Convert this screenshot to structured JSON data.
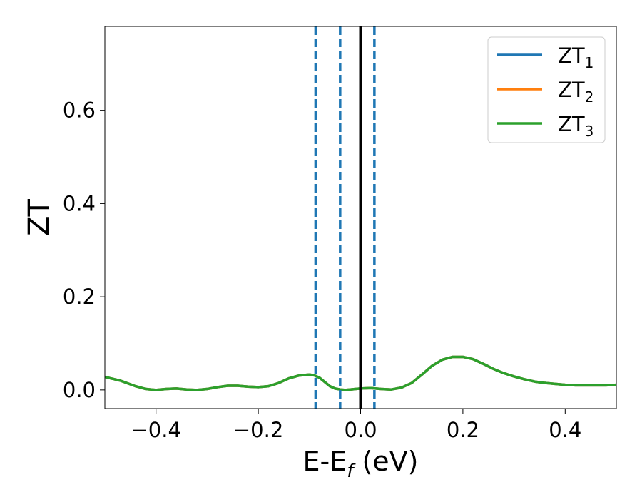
{
  "chart_data": {
    "type": "line",
    "title": "",
    "xlabel": {
      "base": "E-E",
      "subscript": "f",
      "suffix": " (eV)"
    },
    "ylabel": "ZT",
    "xlim": [
      -0.5,
      0.5
    ],
    "ylim": [
      -0.04,
      0.78
    ],
    "xticks": [
      -0.4,
      -0.2,
      0.0,
      0.2,
      0.4
    ],
    "xtick_labels": [
      "−0.4",
      "−0.2",
      "0.0",
      "0.2",
      "0.4"
    ],
    "yticks": [
      0.0,
      0.2,
      0.4,
      0.6
    ],
    "ytick_labels": [
      "0.0",
      "0.2",
      "0.4",
      "0.6"
    ],
    "grid": false,
    "legend_position": "top-right",
    "series": [
      {
        "name": "ZT",
        "subscript": "1",
        "color": "#1f77b4",
        "x": [
          -0.5,
          -0.47,
          -0.44,
          -0.42,
          -0.4,
          -0.38,
          -0.36,
          -0.34,
          -0.32,
          -0.3,
          -0.28,
          -0.26,
          -0.24,
          -0.22,
          -0.2,
          -0.18,
          -0.16,
          -0.14,
          -0.12,
          -0.1,
          -0.09,
          -0.08,
          -0.07,
          -0.06,
          -0.05,
          -0.04,
          -0.03,
          -0.02,
          -0.01,
          0.0,
          0.02,
          0.04,
          0.06,
          0.08,
          0.1,
          0.12,
          0.14,
          0.16,
          0.18,
          0.2,
          0.22,
          0.24,
          0.26,
          0.28,
          0.3,
          0.32,
          0.34,
          0.36,
          0.38,
          0.4,
          0.42,
          0.44,
          0.46,
          0.48,
          0.5
        ],
        "y": [
          0.028,
          0.02,
          0.008,
          0.002,
          0.0,
          0.002,
          0.003,
          0.001,
          0.0,
          0.002,
          0.006,
          0.009,
          0.009,
          0.007,
          0.006,
          0.008,
          0.015,
          0.025,
          0.031,
          0.033,
          0.031,
          0.026,
          0.017,
          0.008,
          0.003,
          0.001,
          0.0,
          0.001,
          0.002,
          0.003,
          0.004,
          0.002,
          0.001,
          0.005,
          0.015,
          0.033,
          0.052,
          0.065,
          0.071,
          0.071,
          0.066,
          0.056,
          0.045,
          0.036,
          0.029,
          0.023,
          0.018,
          0.015,
          0.013,
          0.011,
          0.01,
          0.01,
          0.01,
          0.01,
          0.011
        ]
      },
      {
        "name": "ZT",
        "subscript": "2",
        "color": "#ff7f0e",
        "x": [
          -0.5,
          -0.47,
          -0.44,
          -0.42,
          -0.4,
          -0.38,
          -0.36,
          -0.34,
          -0.32,
          -0.3,
          -0.28,
          -0.26,
          -0.24,
          -0.22,
          -0.2,
          -0.18,
          -0.16,
          -0.14,
          -0.12,
          -0.1,
          -0.09,
          -0.08,
          -0.07,
          -0.06,
          -0.05,
          -0.04,
          -0.03,
          -0.02,
          -0.01,
          0.0,
          0.02,
          0.04,
          0.06,
          0.08,
          0.1,
          0.12,
          0.14,
          0.16,
          0.18,
          0.2,
          0.22,
          0.24,
          0.26,
          0.28,
          0.3,
          0.32,
          0.34,
          0.36,
          0.38,
          0.4,
          0.42,
          0.44,
          0.46,
          0.48,
          0.5
        ],
        "y": [
          0.028,
          0.02,
          0.008,
          0.002,
          0.0,
          0.002,
          0.003,
          0.001,
          0.0,
          0.002,
          0.006,
          0.009,
          0.009,
          0.007,
          0.006,
          0.008,
          0.015,
          0.025,
          0.031,
          0.033,
          0.031,
          0.026,
          0.017,
          0.008,
          0.003,
          0.001,
          0.0,
          0.001,
          0.002,
          0.003,
          0.004,
          0.002,
          0.001,
          0.005,
          0.015,
          0.033,
          0.052,
          0.065,
          0.071,
          0.071,
          0.066,
          0.056,
          0.045,
          0.036,
          0.029,
          0.023,
          0.018,
          0.015,
          0.013,
          0.011,
          0.01,
          0.01,
          0.01,
          0.01,
          0.011
        ]
      },
      {
        "name": "ZT",
        "subscript": "3",
        "color": "#2ca02c",
        "x": [
          -0.5,
          -0.47,
          -0.44,
          -0.42,
          -0.4,
          -0.38,
          -0.36,
          -0.34,
          -0.32,
          -0.3,
          -0.28,
          -0.26,
          -0.24,
          -0.22,
          -0.2,
          -0.18,
          -0.16,
          -0.14,
          -0.12,
          -0.1,
          -0.09,
          -0.08,
          -0.07,
          -0.06,
          -0.05,
          -0.04,
          -0.03,
          -0.02,
          -0.01,
          0.0,
          0.02,
          0.04,
          0.06,
          0.08,
          0.1,
          0.12,
          0.14,
          0.16,
          0.18,
          0.2,
          0.22,
          0.24,
          0.26,
          0.28,
          0.3,
          0.32,
          0.34,
          0.36,
          0.38,
          0.4,
          0.42,
          0.44,
          0.46,
          0.48,
          0.5
        ],
        "y": [
          0.028,
          0.02,
          0.008,
          0.002,
          0.0,
          0.002,
          0.003,
          0.001,
          0.0,
          0.002,
          0.006,
          0.009,
          0.009,
          0.007,
          0.006,
          0.008,
          0.015,
          0.025,
          0.031,
          0.033,
          0.031,
          0.026,
          0.017,
          0.008,
          0.003,
          0.001,
          0.0,
          0.001,
          0.002,
          0.003,
          0.004,
          0.002,
          0.001,
          0.005,
          0.015,
          0.033,
          0.052,
          0.065,
          0.071,
          0.071,
          0.066,
          0.056,
          0.045,
          0.036,
          0.029,
          0.023,
          0.018,
          0.015,
          0.013,
          0.011,
          0.01,
          0.01,
          0.01,
          0.01,
          0.011
        ]
      }
    ],
    "vertical_lines": [
      {
        "x": -0.088,
        "style": "dashed",
        "color": "#1f77b4"
      },
      {
        "x": -0.04,
        "style": "dashed",
        "color": "#1f77b4"
      },
      {
        "x": 0.0,
        "style": "solid",
        "color": "#000000"
      },
      {
        "x": 0.027,
        "style": "dashed",
        "color": "#1f77b4"
      }
    ]
  }
}
